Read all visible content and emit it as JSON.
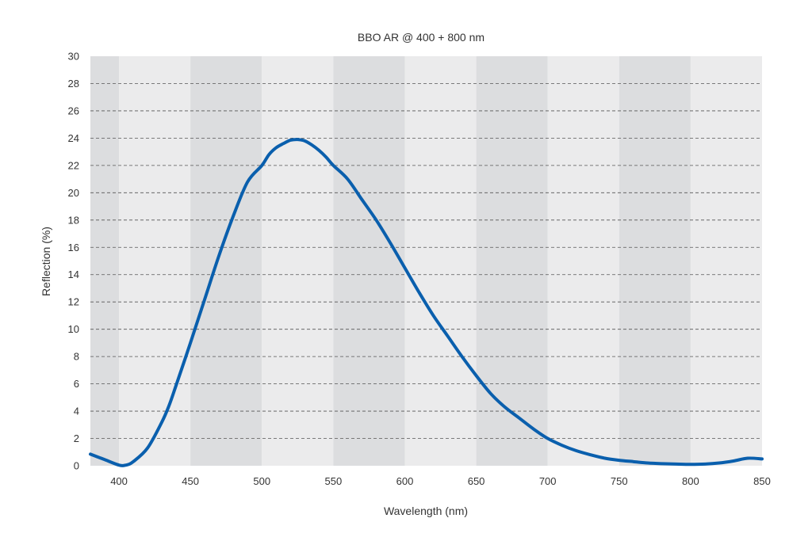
{
  "chart_data": {
    "type": "line",
    "title": "BBO AR @ 400 + 800 nm",
    "xlabel": "Wavelength (nm)",
    "ylabel": "Reflection (%)",
    "xlim": [
      380,
      850
    ],
    "ylim": [
      0,
      30
    ],
    "x_ticks": [
      400,
      450,
      500,
      550,
      600,
      650,
      700,
      750,
      800,
      850
    ],
    "y_ticks": [
      0,
      2,
      4,
      6,
      8,
      10,
      12,
      14,
      16,
      18,
      20,
      22,
      24,
      26,
      28,
      30
    ],
    "grid": "horizontal-dashed",
    "legend": "none",
    "band_colors": {
      "light": "#ebebec",
      "dark": "#dcdddf"
    },
    "line_color": "#0a5fad",
    "series": [
      {
        "x": [
          380,
          390,
          400,
          405,
          410,
          420,
          430,
          435,
          440,
          450,
          460,
          470,
          480,
          490,
          500,
          505,
          510,
          515,
          520,
          525,
          530,
          535,
          540,
          545,
          550,
          560,
          570,
          580,
          590,
          600,
          610,
          620,
          630,
          640,
          650,
          660,
          670,
          680,
          690,
          700,
          710,
          720,
          730,
          740,
          750,
          760,
          770,
          780,
          790,
          800,
          810,
          820,
          830,
          840,
          850
        ],
        "y": [
          0.85,
          0.45,
          0.05,
          0.05,
          0.3,
          1.3,
          3.2,
          4.4,
          5.9,
          9.0,
          12.2,
          15.4,
          18.3,
          20.8,
          22.0,
          22.8,
          23.3,
          23.6,
          23.85,
          23.9,
          23.8,
          23.5,
          23.1,
          22.6,
          22.0,
          21.0,
          19.5,
          18.0,
          16.3,
          14.5,
          12.7,
          11.0,
          9.5,
          8.0,
          6.6,
          5.3,
          4.3,
          3.5,
          2.7,
          2.0,
          1.5,
          1.1,
          0.8,
          0.55,
          0.4,
          0.3,
          0.2,
          0.15,
          0.12,
          0.1,
          0.12,
          0.2,
          0.35,
          0.55,
          0.5
        ]
      }
    ]
  }
}
